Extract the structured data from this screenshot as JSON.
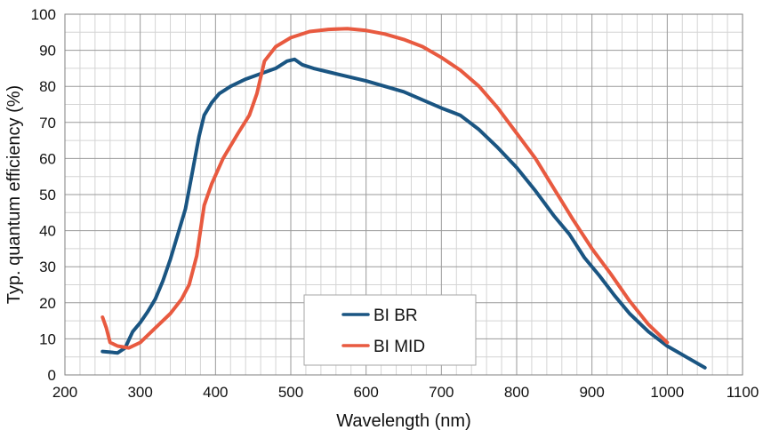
{
  "chart_data": {
    "type": "line",
    "title": "",
    "xlabel": "Wavelength (nm)",
    "ylabel": "Typ. quantum efficiency (%)",
    "xlim": [
      200,
      1100
    ],
    "ylim": [
      0,
      100
    ],
    "x_major_ticks": [
      200,
      300,
      400,
      500,
      600,
      700,
      800,
      900,
      1000,
      1100
    ],
    "y_major_ticks": [
      0,
      10,
      20,
      30,
      40,
      50,
      60,
      70,
      80,
      90,
      100
    ],
    "x_tick_labels": [
      "200",
      "300",
      "400",
      "500",
      "600",
      "700",
      "800",
      "900",
      "1000",
      "1100"
    ],
    "y_tick_labels": [
      "0",
      "10",
      "20",
      "30",
      "40",
      "50",
      "60",
      "70",
      "80",
      "90",
      "100"
    ],
    "x_minor_step": 20,
    "y_minor_step": 5,
    "grid": true,
    "legend_position": "bottom-center",
    "series": [
      {
        "name": "BI BR",
        "color": "#1a5582",
        "points": [
          [
            250,
            6.5
          ],
          [
            260,
            6.3
          ],
          [
            270,
            6.1
          ],
          [
            280,
            7.5
          ],
          [
            290,
            12
          ],
          [
            300,
            14.5
          ],
          [
            310,
            17.5
          ],
          [
            320,
            21
          ],
          [
            330,
            26
          ],
          [
            340,
            32
          ],
          [
            350,
            39
          ],
          [
            360,
            46
          ],
          [
            370,
            57
          ],
          [
            378,
            66
          ],
          [
            385,
            72
          ],
          [
            395,
            75.5
          ],
          [
            405,
            78
          ],
          [
            420,
            80
          ],
          [
            440,
            82
          ],
          [
            460,
            83.5
          ],
          [
            480,
            85
          ],
          [
            495,
            87
          ],
          [
            505,
            87.5
          ],
          [
            515,
            86
          ],
          [
            530,
            85
          ],
          [
            550,
            84
          ],
          [
            600,
            81.5
          ],
          [
            650,
            78.5
          ],
          [
            700,
            74
          ],
          [
            725,
            72
          ],
          [
            750,
            68
          ],
          [
            775,
            63
          ],
          [
            800,
            57.5
          ],
          [
            825,
            51
          ],
          [
            850,
            44
          ],
          [
            870,
            39
          ],
          [
            890,
            32.5
          ],
          [
            910,
            27.5
          ],
          [
            930,
            22
          ],
          [
            950,
            17
          ],
          [
            975,
            12
          ],
          [
            1000,
            8
          ],
          [
            1025,
            5
          ],
          [
            1050,
            2
          ]
        ]
      },
      {
        "name": "BI MID",
        "color": "#e85a40",
        "points": [
          [
            250,
            16
          ],
          [
            255,
            13
          ],
          [
            260,
            9
          ],
          [
            270,
            8
          ],
          [
            285,
            7.5
          ],
          [
            300,
            9
          ],
          [
            320,
            13
          ],
          [
            340,
            17
          ],
          [
            355,
            21
          ],
          [
            365,
            25
          ],
          [
            375,
            33
          ],
          [
            385,
            47
          ],
          [
            395,
            53
          ],
          [
            410,
            60
          ],
          [
            430,
            67
          ],
          [
            445,
            72
          ],
          [
            455,
            78
          ],
          [
            465,
            87
          ],
          [
            480,
            91
          ],
          [
            500,
            93.5
          ],
          [
            525,
            95.2
          ],
          [
            550,
            95.8
          ],
          [
            575,
            96
          ],
          [
            600,
            95.5
          ],
          [
            625,
            94.5
          ],
          [
            650,
            93
          ],
          [
            675,
            91
          ],
          [
            700,
            88
          ],
          [
            725,
            84.5
          ],
          [
            750,
            80
          ],
          [
            775,
            74
          ],
          [
            800,
            67
          ],
          [
            825,
            60
          ],
          [
            850,
            51.5
          ],
          [
            875,
            43
          ],
          [
            900,
            35
          ],
          [
            925,
            28
          ],
          [
            950,
            20.5
          ],
          [
            975,
            14
          ],
          [
            1000,
            9
          ]
        ]
      }
    ]
  }
}
